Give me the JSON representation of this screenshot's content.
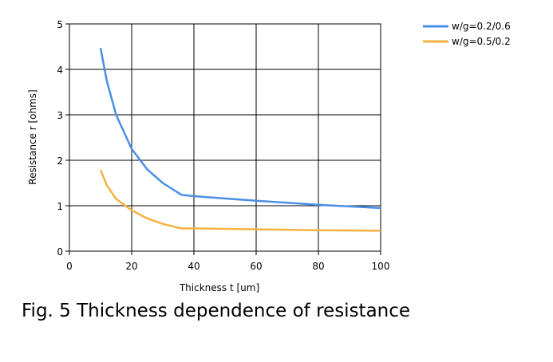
{
  "chart_data": {
    "type": "line",
    "caption": "Fig. 5 Thickness dependence of resistance",
    "xlabel": "Thickness t [um]",
    "ylabel": "Resistance  r [ohms]",
    "x": [
      10,
      12,
      15,
      20,
      25,
      30,
      36,
      40,
      60,
      80,
      100
    ],
    "series": [
      {
        "name": "w/g=0.2/0.6",
        "color": "#4a8fe7",
        "values": [
          4.47,
          3.75,
          3.0,
          2.25,
          1.8,
          1.5,
          1.24,
          1.21,
          1.11,
          1.02,
          0.95
        ]
      },
      {
        "name": "w/g=0.5/0.2",
        "color": "#f5b240",
        "values": [
          1.79,
          1.45,
          1.15,
          0.9,
          0.72,
          0.6,
          0.5,
          0.5,
          0.48,
          0.46,
          0.45
        ]
      }
    ],
    "xlim": [
      0,
      100
    ],
    "xticks": [
      0,
      20,
      40,
      60,
      80,
      100
    ],
    "ylim": [
      0,
      5
    ],
    "yticks": [
      0,
      1,
      2,
      3,
      4,
      5
    ],
    "grid": true,
    "legend": "top-right-outside"
  }
}
